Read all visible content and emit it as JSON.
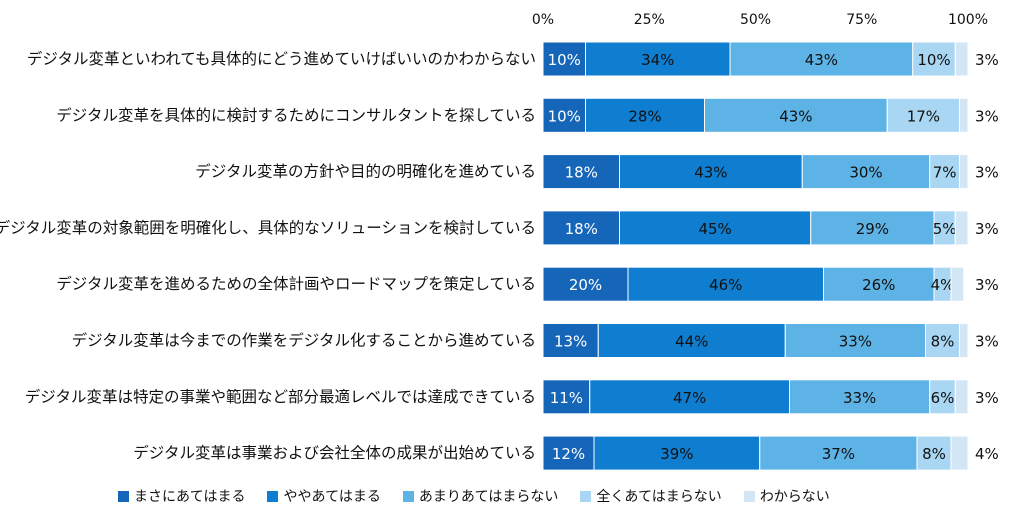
{
  "chart_data": {
    "type": "bar",
    "orientation": "horizontal",
    "stacked": true,
    "xlim": [
      0,
      100
    ],
    "xticks": [
      "0%",
      "25%",
      "50%",
      "75%",
      "100%"
    ],
    "categories": [
      "デジタル変革といわれても具体的にどう進めていけばいいのかわからない",
      "デジタル変革を具体的に検討するためにコンサルタントを探している",
      "デジタル変革の方針や目的の明確化を進めている",
      "デジタル変革の対象範囲を明確化し、具体的なソリューションを検討している",
      "デジタル変革を進めるための全体計画やロードマップを策定している",
      "デジタル変革は今までの作業をデジタル化することから進めている",
      "デジタル変革は特定の事業や範囲など部分最適レベルでは達成できている",
      "デジタル変革は事業および会社全体の成果が出始めている"
    ],
    "series": [
      {
        "name": "まさにあてはまる",
        "color": "#1565b8",
        "text_color": "#ffffff",
        "values": [
          10,
          10,
          18,
          18,
          20,
          13,
          11,
          12
        ],
        "labels": [
          "10%",
          "10%",
          "18%",
          "18%",
          "20%",
          "13%",
          "11%",
          "12%"
        ]
      },
      {
        "name": "ややあてはまる",
        "color": "#0f7ed0",
        "text_color": "#111111",
        "values": [
          34,
          28,
          43,
          45,
          46,
          44,
          47,
          39
        ],
        "labels": [
          "34%",
          "28%",
          "43%",
          "45%",
          "46%",
          "44%",
          "47%",
          "39%"
        ]
      },
      {
        "name": "あまりあてはまらない",
        "color": "#5eb3e6",
        "text_color": "#111111",
        "values": [
          43,
          43,
          30,
          29,
          26,
          33,
          33,
          37
        ],
        "labels": [
          "43%",
          "43%",
          "30%",
          "29%",
          "26%",
          "33%",
          "33%",
          "37%"
        ]
      },
      {
        "name": "全くあてはまらない",
        "color": "#a8d6f3",
        "text_color": "#111111",
        "values": [
          10,
          17,
          7,
          5,
          4,
          8,
          6,
          8
        ],
        "labels": [
          "10%",
          "17%",
          "7%",
          "5%",
          "4%",
          "8%",
          "6%",
          "8%"
        ]
      },
      {
        "name": "わからない",
        "color": "#d2e6f6",
        "text_color": "#111111",
        "values": [
          3,
          3,
          3,
          3,
          3,
          3,
          3,
          4
        ],
        "labels": [
          "3%",
          "3%",
          "3%",
          "3%",
          "3%",
          "3%",
          "3%",
          "4%"
        ]
      }
    ],
    "legend_position": "bottom"
  }
}
